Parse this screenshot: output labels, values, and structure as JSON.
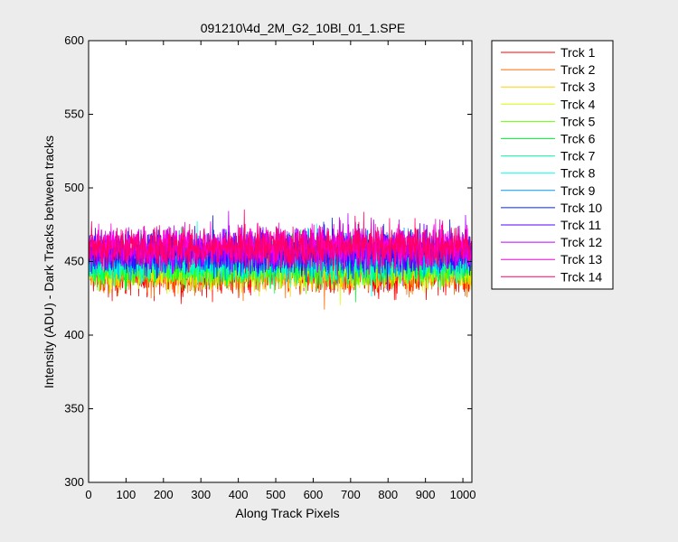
{
  "chart_data": {
    "type": "line",
    "title": "091210\\4d_2M_G2_10Bl_01_1.SPE",
    "xlabel": "Along Track Pixels",
    "ylabel": "Intensity (ADU) - Dark Tracks between tracks",
    "xlim": [
      0,
      1024
    ],
    "ylim": [
      300,
      600
    ],
    "x_ticks": [
      "0",
      "100",
      "200",
      "300",
      "400",
      "500",
      "600",
      "700",
      "800",
      "900",
      "1000"
    ],
    "y_ticks": [
      "300",
      "350",
      "400",
      "450",
      "500",
      "550",
      "600"
    ],
    "legend_position": "outside-right",
    "grid": false,
    "x_range": [
      1,
      1024
    ],
    "series": [
      {
        "name": "Trck 1",
        "color": "#ff0000",
        "mean": 441,
        "spread": 7
      },
      {
        "name": "Trck 2",
        "color": "#ff6a00",
        "mean": 443,
        "spread": 7
      },
      {
        "name": "Trck 3",
        "color": "#ffd000",
        "mean": 445,
        "spread": 7
      },
      {
        "name": "Trck 4",
        "color": "#d4ff00",
        "mean": 446,
        "spread": 7
      },
      {
        "name": "Trck 5",
        "color": "#66ff00",
        "mean": 447,
        "spread": 7
      },
      {
        "name": "Trck 6",
        "color": "#00ff33",
        "mean": 448,
        "spread": 7
      },
      {
        "name": "Trck 7",
        "color": "#00ffa0",
        "mean": 450,
        "spread": 7
      },
      {
        "name": "Trck 8",
        "color": "#00ffee",
        "mean": 452,
        "spread": 7
      },
      {
        "name": "Trck 9",
        "color": "#0099ff",
        "mean": 454,
        "spread": 7
      },
      {
        "name": "Trck 10",
        "color": "#0022ff",
        "mean": 456,
        "spread": 7
      },
      {
        "name": "Trck 11",
        "color": "#5500ff",
        "mean": 457,
        "spread": 7
      },
      {
        "name": "Trck 12",
        "color": "#bb00ff",
        "mean": 459,
        "spread": 7
      },
      {
        "name": "Trck 13",
        "color": "#ff00dd",
        "mean": 460,
        "spread": 7
      },
      {
        "name": "Trck 14",
        "color": "#ff0066",
        "mean": 460,
        "spread": 7
      }
    ]
  }
}
